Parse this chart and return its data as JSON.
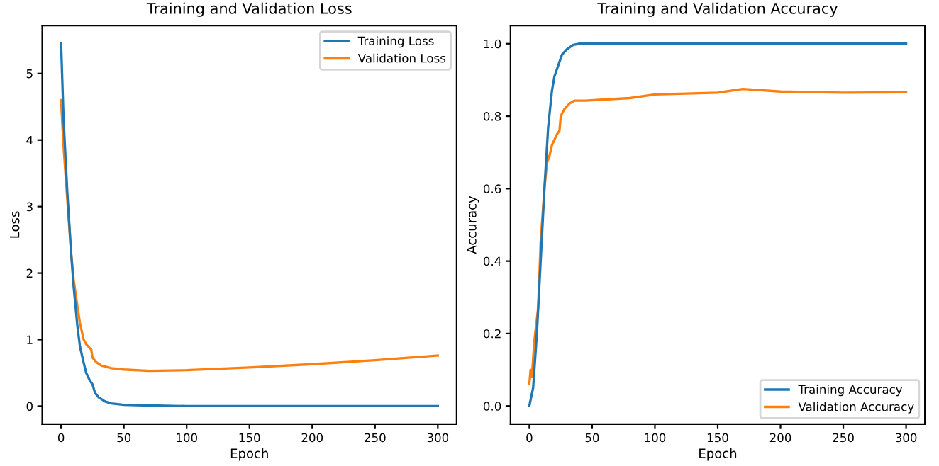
{
  "chart_data": [
    {
      "type": "line",
      "title": "Training and Validation Loss",
      "xlabel": "Epoch",
      "ylabel": "Loss",
      "xlim": [
        -15,
        315
      ],
      "xticks": [
        0,
        50,
        100,
        150,
        200,
        250,
        300
      ],
      "ylim": [
        -0.27,
        5.72
      ],
      "yticks": [
        0,
        1,
        2,
        3,
        4,
        5
      ],
      "legend": "top right",
      "grid": false,
      "series": [
        {
          "name": "Training Loss",
          "color": "#1f77b4",
          "x": [
            0,
            2,
            5,
            8,
            10,
            13,
            15,
            18,
            20,
            23,
            25,
            27,
            30,
            35,
            40,
            50,
            70,
            100,
            300
          ],
          "values": [
            5.45,
            4.3,
            3.2,
            2.3,
            1.8,
            1.2,
            0.9,
            0.65,
            0.5,
            0.38,
            0.33,
            0.2,
            0.13,
            0.07,
            0.04,
            0.02,
            0.01,
            0,
            0
          ]
        },
        {
          "name": "Validation Loss",
          "color": "#ff7f0e",
          "x": [
            0,
            2,
            5,
            8,
            10,
            13,
            15,
            18,
            20,
            24,
            25,
            28,
            32,
            40,
            50,
            70,
            100,
            150,
            200,
            250,
            300
          ],
          "values": [
            4.6,
            3.9,
            3.1,
            2.3,
            1.9,
            1.5,
            1.25,
            1.0,
            0.93,
            0.85,
            0.73,
            0.66,
            0.61,
            0.57,
            0.55,
            0.53,
            0.54,
            0.58,
            0.63,
            0.69,
            0.76
          ]
        }
      ]
    },
    {
      "type": "line",
      "title": "Training and Validation Accuracy",
      "xlabel": "Epoch",
      "ylabel": "Accuracy",
      "xlim": [
        -15,
        315
      ],
      "xticks": [
        0,
        50,
        100,
        150,
        200,
        250,
        300
      ],
      "ylim": [
        -0.05,
        1.05
      ],
      "yticks": [
        {
          "value": 0,
          "label": "0.0"
        },
        {
          "value": 0.2,
          "label": "0.2"
        },
        {
          "value": 0.4,
          "label": "0.4"
        },
        {
          "value": 0.6,
          "label": "0.6"
        },
        {
          "value": 0.8,
          "label": "0.8"
        },
        {
          "value": 1,
          "label": "1.0"
        }
      ],
      "legend": "bottom right",
      "grid": false,
      "series": [
        {
          "name": "Training Accuracy",
          "color": "#1f77b4",
          "x": [
            0,
            3,
            6,
            9,
            12,
            15,
            18,
            20,
            23,
            26,
            30,
            35,
            40,
            300
          ],
          "values": [
            0,
            0.05,
            0.2,
            0.4,
            0.6,
            0.77,
            0.87,
            0.91,
            0.94,
            0.97,
            0.985,
            0.997,
            1.0,
            1.0
          ]
        },
        {
          "name": "Validation Accuracy",
          "color": "#ff7f0e",
          "x": [
            0,
            1,
            2,
            4,
            7,
            9,
            12,
            14,
            16,
            18,
            22,
            24,
            25,
            28,
            32,
            36,
            45,
            60,
            80,
            100,
            130,
            150,
            170,
            200,
            250,
            300
          ],
          "values": [
            0.06,
            0.1,
            0.08,
            0.18,
            0.27,
            0.45,
            0.6,
            0.67,
            0.69,
            0.72,
            0.75,
            0.76,
            0.8,
            0.82,
            0.835,
            0.843,
            0.843,
            0.846,
            0.85,
            0.86,
            0.863,
            0.865,
            0.875,
            0.868,
            0.865,
            0.866
          ]
        }
      ]
    }
  ]
}
